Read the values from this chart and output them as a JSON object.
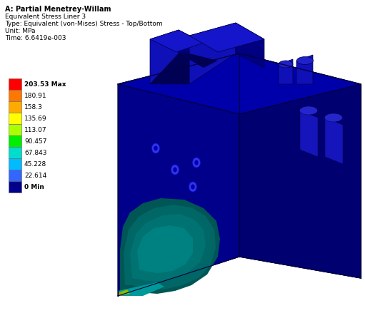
{
  "title_line1": "A: Partial Menetrey-Willam",
  "title_line2": "Equivalent Stress Liner 3",
  "title_line3": "Type: Equivalent (von-Mises) Stress - Top/Bottom",
  "title_line4": "Unit: MPa",
  "title_line5": "Time: 6.6419e-003",
  "legend_values": [
    "203.53 Max",
    "180.91",
    "158.3",
    "135.69",
    "113.07",
    "90.457",
    "67.843",
    "45.228",
    "22.614",
    "0 Min"
  ],
  "legend_colors": [
    "#ff0000",
    "#ff7700",
    "#ffaa00",
    "#ffff00",
    "#aaff00",
    "#00ee00",
    "#00ddcc",
    "#00bbff",
    "#3366ff",
    "#00008B"
  ],
  "background_color": "#ffffff",
  "box_left_color": "#00008B",
  "box_left_shade": "#000099",
  "box_top_color": "#0000aa",
  "box_right_color": "#000070",
  "box_right_shade": "#000060",
  "edge_color": "#000044"
}
